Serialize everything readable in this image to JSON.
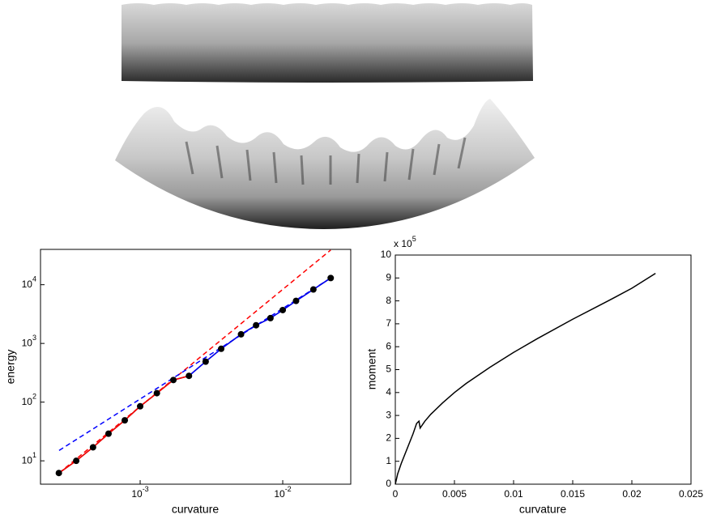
{
  "chart_data": [
    {
      "type": "line",
      "log_x": true,
      "log_y": true,
      "x_label": "curvature",
      "y_label": "energy",
      "xlim": [
        0.0002,
        0.03
      ],
      "ylim": [
        4,
        40000
      ],
      "xticks": [
        {
          "value": 0.001,
          "label": "10^-3"
        },
        {
          "value": 0.01,
          "label": "10^-2"
        }
      ],
      "yticks": [
        {
          "value": 10,
          "label": "10^1"
        },
        {
          "value": 100,
          "label": "10^2"
        },
        {
          "value": 1000,
          "label": "10^3"
        },
        {
          "value": 10000,
          "label": "10^4"
        }
      ],
      "series": [
        {
          "color": "#ff0000",
          "style": "dashed",
          "x": [
            0.00027,
            0.0217
          ],
          "values": [
            6.2,
            39000
          ]
        },
        {
          "color": "#0000ff",
          "style": "dashed",
          "x": [
            0.00027,
            0.0217
          ],
          "values": [
            15,
            13000
          ]
        },
        {
          "color": "#000000",
          "style": "solid",
          "marker": "o",
          "x": [
            0.000269,
            0.000356,
            0.000467,
            0.0006,
            0.00078,
            0.001,
            0.00131,
            0.00171,
            0.0022,
            0.00288,
            0.0037,
            0.0051,
            0.0065,
            0.0082,
            0.01,
            0.0124,
            0.0164,
            0.0217
          ],
          "values": [
            6.2,
            10,
            17,
            29,
            49,
            85,
            142,
            238,
            280,
            490,
            810,
            1430,
            2040,
            2700,
            3700,
            5300,
            8300,
            13000
          ]
        },
        {
          "color": "#ff0000",
          "style": "solid",
          "x": [
            0.000269,
            0.000356,
            0.000467,
            0.0006,
            0.00078,
            0.001,
            0.00131,
            0.00171,
            0.0022
          ],
          "values": [
            6.2,
            10,
            17,
            29,
            49,
            85,
            142,
            238,
            280
          ]
        },
        {
          "color": "#0000ff",
          "style": "solid",
          "x": [
            0.0022,
            0.00288,
            0.0037,
            0.0051,
            0.0065,
            0.0082,
            0.01,
            0.0124,
            0.0164,
            0.0217
          ],
          "values": [
            280,
            490,
            810,
            1430,
            2040,
            2700,
            3700,
            5300,
            8300,
            13000
          ]
        }
      ]
    },
    {
      "type": "line",
      "x_label": "curvature",
      "y_label": "moment",
      "y_multiplier": "x 10^5",
      "xlim": [
        0,
        0.025
      ],
      "ylim": [
        0,
        10
      ],
      "xticks": [
        0,
        0.005,
        0.01,
        0.015,
        0.02,
        0.025
      ],
      "yticks": [
        0,
        1,
        2,
        3,
        4,
        5,
        6,
        7,
        8,
        9,
        10
      ],
      "series": [
        {
          "color": "#000000",
          "style": "solid",
          "x": [
            0,
            0.0002,
            0.0005,
            0.001,
            0.0015,
            0.0018,
            0.002,
            0.0021,
            0.0025,
            0.003,
            0.004,
            0.005,
            0.006,
            0.008,
            0.01,
            0.012,
            0.015,
            0.018,
            0.02,
            0.022
          ],
          "values": [
            0,
            0.45,
            0.9,
            1.55,
            2.2,
            2.65,
            2.75,
            2.45,
            2.75,
            3.05,
            3.55,
            4.0,
            4.4,
            5.1,
            5.75,
            6.35,
            7.2,
            8.0,
            8.55,
            9.2
          ]
        }
      ]
    }
  ]
}
